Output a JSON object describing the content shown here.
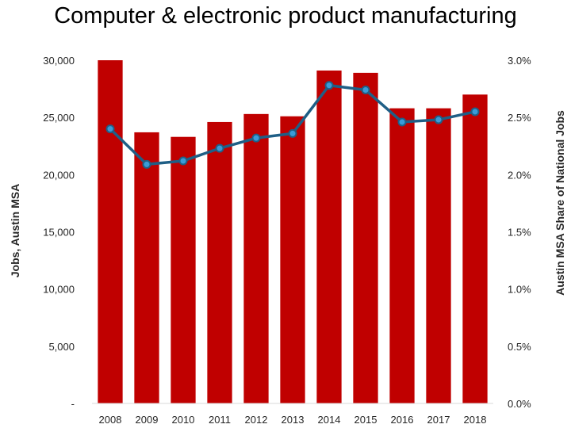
{
  "chart_data": {
    "type": "bar",
    "title": "Computer & electronic product manufacturing",
    "xlabel": "",
    "ylabel": "Jobs, Austin MSA",
    "y2label": "Austin MSA Share of National Jobs",
    "categories": [
      "2008",
      "2009",
      "2010",
      "2011",
      "2012",
      "2013",
      "2014",
      "2015",
      "2016",
      "2017",
      "2018"
    ],
    "series": [
      {
        "type": "bar",
        "axis": "left",
        "values": [
          30000,
          23700,
          23300,
          24600,
          25300,
          25100,
          29100,
          28900,
          25800,
          25800,
          27000
        ]
      },
      {
        "type": "line",
        "axis": "right",
        "values": [
          0.024,
          0.0209,
          0.0212,
          0.0223,
          0.0232,
          0.0236,
          0.0278,
          0.0274,
          0.0246,
          0.0248,
          0.0255
        ]
      }
    ],
    "ylim": [
      0,
      30000
    ],
    "y2lim": [
      0,
      0.03
    ],
    "y_ticks": [
      "-",
      "5,000",
      "10,000",
      "15,000",
      "20,000",
      "25,000",
      "30,000"
    ],
    "y_tick_values": [
      0,
      5000,
      10000,
      15000,
      20000,
      25000,
      30000
    ],
    "y2_ticks": [
      "0.0%",
      "0.5%",
      "1.0%",
      "1.5%",
      "2.0%",
      "2.5%",
      "3.0%"
    ],
    "y2_tick_values": [
      0,
      0.005,
      0.01,
      0.015,
      0.02,
      0.025,
      0.03
    ],
    "grid": false,
    "legend": "none",
    "colors": {
      "bar": "#c00000",
      "line": "#1f5f86",
      "marker_fill": "#3a9bd8",
      "axis": "#d9d9d9"
    }
  }
}
